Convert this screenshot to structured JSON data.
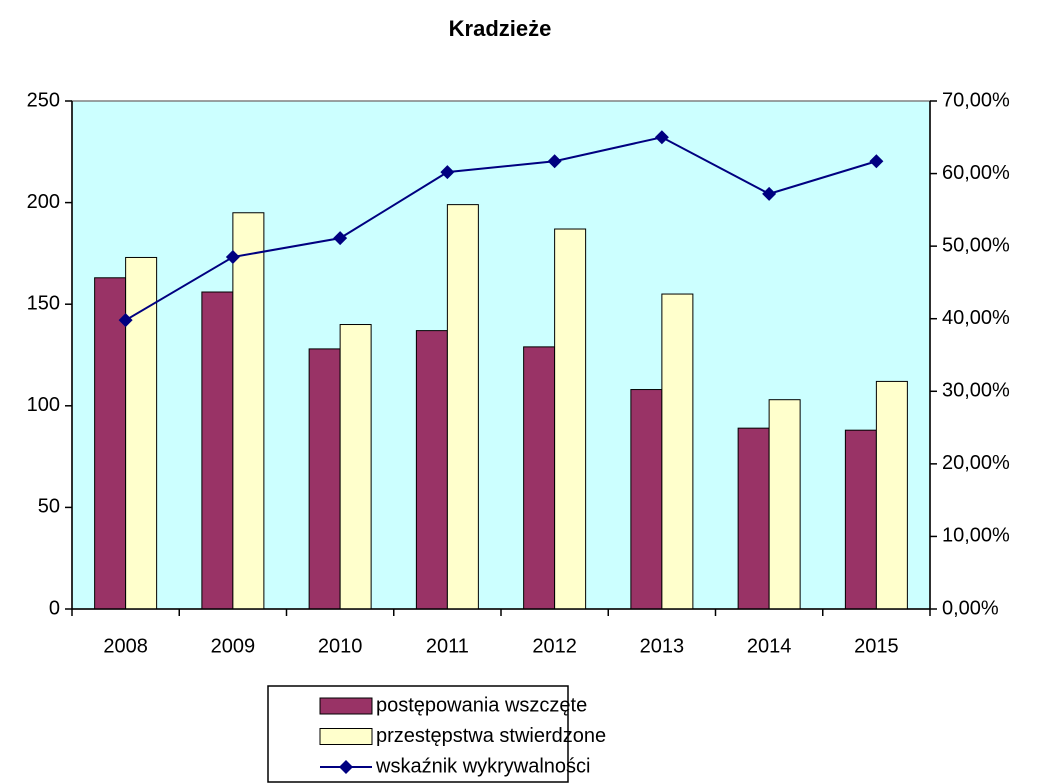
{
  "chart_data": {
    "type": "bar",
    "title": "Kradzieże",
    "categories": [
      "2008",
      "2009",
      "2010",
      "2011",
      "2012",
      "2013",
      "2014",
      "2015"
    ],
    "series": [
      {
        "name": "postępowania wszczęte",
        "color": "#993366",
        "values": [
          163,
          156,
          128,
          137,
          129,
          108,
          89,
          88
        ]
      },
      {
        "name": "przestępstwa stwierdzone",
        "color": "#ffffcc",
        "values": [
          173,
          195,
          140,
          199,
          187,
          155,
          103,
          112
        ]
      },
      {
        "name": "wskaźnik wykrywalności",
        "color": "#000080",
        "type": "line",
        "axis": "y2",
        "values": [
          39.8,
          48.5,
          51.1,
          60.2,
          61.7,
          65.0,
          57.2,
          61.7
        ]
      }
    ],
    "ylim": [
      0,
      250
    ],
    "yticks": [
      0,
      50,
      100,
      150,
      200,
      250
    ],
    "y2lim": [
      0,
      70
    ],
    "y2ticks": [
      {
        "value": 0,
        "label": "0,00%"
      },
      {
        "value": 10,
        "label": "10,00%"
      },
      {
        "value": 20,
        "label": "20,00%"
      },
      {
        "value": 30,
        "label": "30,00%"
      },
      {
        "value": 40,
        "label": "40,00%"
      },
      {
        "value": 50,
        "label": "50,00%"
      },
      {
        "value": 60,
        "label": "60,00%"
      },
      {
        "value": 70,
        "label": "70,00%"
      }
    ],
    "plot_background": "#ccffff",
    "legend": "bottom"
  }
}
